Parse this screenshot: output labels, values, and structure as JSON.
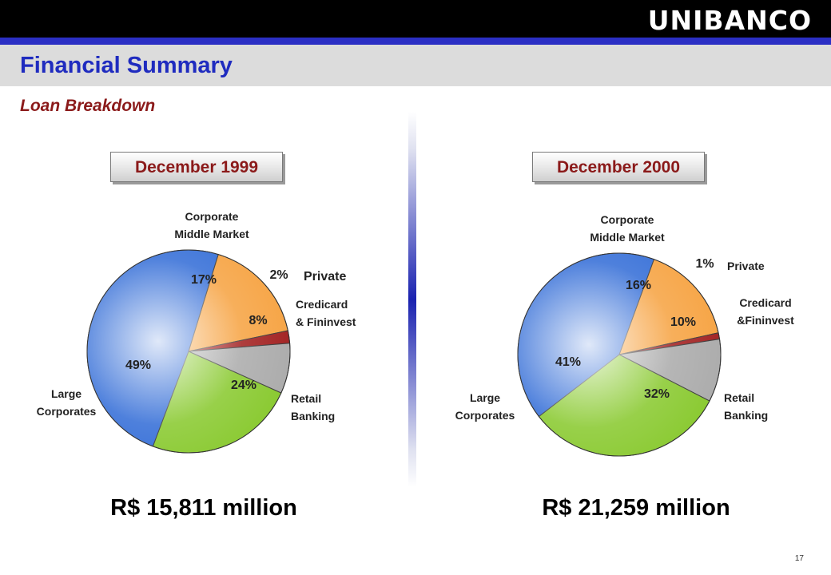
{
  "brand": "UNIBANCO",
  "header": {
    "title": "Financial Summary",
    "subtitle": "Loan Breakdown"
  },
  "page_number": "17",
  "colors": {
    "header_blue": "#2b2fc4",
    "title_blue": "#1f2bbf",
    "accent_red": "#8b1a1a",
    "large_corporates": "#2f6ad6",
    "corporate_middle_market": "#f6a13e",
    "private": "#a01c1c",
    "credicard_fininvest": "#a9a9a9",
    "retail_banking": "#86c82a"
  },
  "chart_data": [
    {
      "type": "pie",
      "title": "December 1999",
      "total_label": "R$ 15,811 million",
      "slices": [
        {
          "name": "Corporate Middle Market",
          "label_lines": [
            "Corporate",
            "Middle Market"
          ],
          "value": 17,
          "value_label": "17%",
          "color": "#f6a13e"
        },
        {
          "name": "Private",
          "label_lines": [
            "Private"
          ],
          "value": 2,
          "value_label": "2%",
          "color": "#a01c1c"
        },
        {
          "name": "Credicard & Fininvest",
          "label_lines": [
            "Credicard",
            "& Fininvest"
          ],
          "value": 8,
          "value_label": "8%",
          "color": "#a9a9a9"
        },
        {
          "name": "Retail Banking",
          "label_lines": [
            "Retail",
            "Banking"
          ],
          "value": 24,
          "value_label": "24%",
          "color": "#86c82a"
        },
        {
          "name": "Large Corporates",
          "label_lines": [
            "Large",
            "Corporates"
          ],
          "value": 49,
          "value_label": "49%",
          "color": "#2f6ad6"
        }
      ]
    },
    {
      "type": "pie",
      "title": "December 2000",
      "total_label": "R$ 21,259 million",
      "slices": [
        {
          "name": "Corporate Middle Market",
          "label_lines": [
            "Corporate",
            "Middle Market"
          ],
          "value": 16,
          "value_label": "16%",
          "color": "#f6a13e"
        },
        {
          "name": "Private",
          "label_lines": [
            "Private"
          ],
          "value": 1,
          "value_label": "1%",
          "color": "#a01c1c"
        },
        {
          "name": "Credicard & Fininvest",
          "label_lines": [
            "Credicard",
            "&Fininvest"
          ],
          "value": 10,
          "value_label": "10%",
          "color": "#a9a9a9"
        },
        {
          "name": "Retail Banking",
          "label_lines": [
            "Retail",
            "Banking"
          ],
          "value": 32,
          "value_label": "32%",
          "color": "#86c82a"
        },
        {
          "name": "Large Corporates",
          "label_lines": [
            "Large",
            "Corporates"
          ],
          "value": 41,
          "value_label": "41%",
          "color": "#2f6ad6"
        }
      ]
    }
  ]
}
